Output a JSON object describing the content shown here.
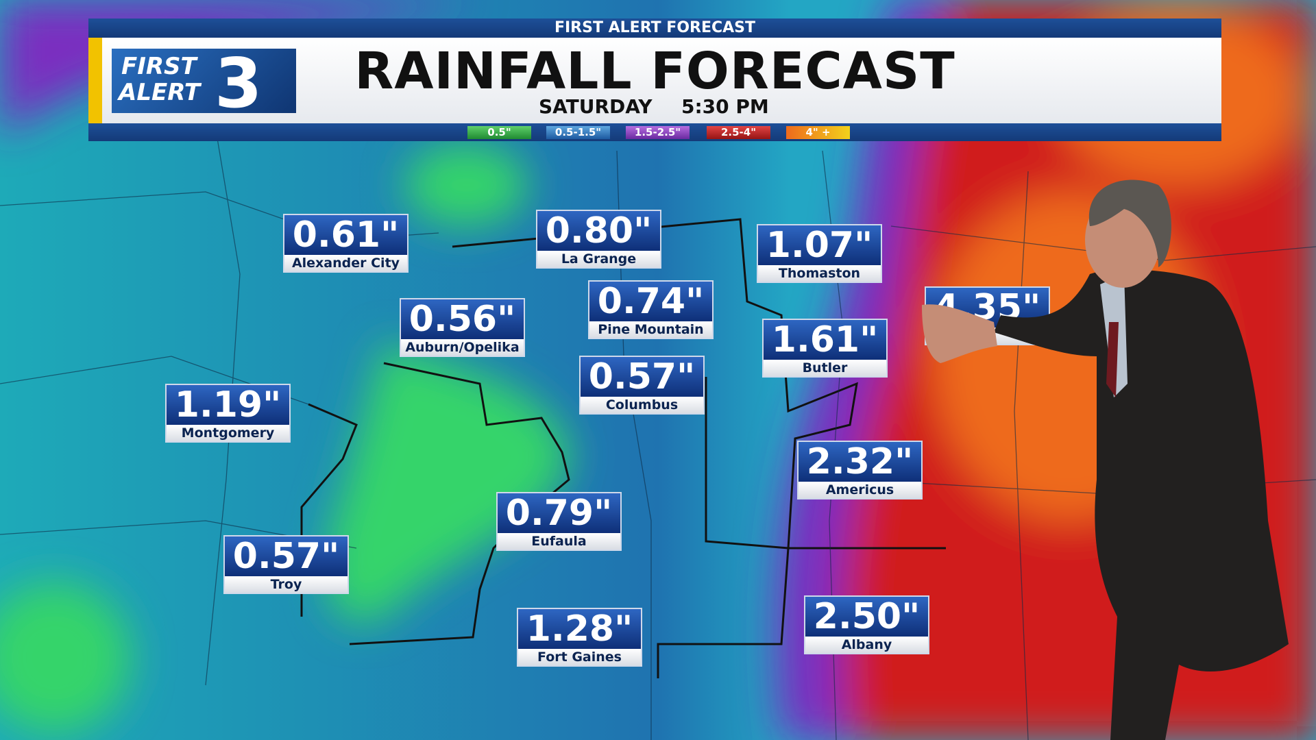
{
  "header": {
    "banner": "FIRST ALERT FORECAST",
    "logo": {
      "line1": "FIRST",
      "line2": "ALERT",
      "number": "3"
    },
    "title": "RAINFALL FORECAST",
    "day": "SATURDAY",
    "time": "5:30 PM"
  },
  "legend": [
    "0.5\"",
    "0.5-1.5\"",
    "1.5-2.5\"",
    "2.5-4\"",
    "4\" +"
  ],
  "locations": [
    {
      "amount": "0.61\"",
      "name": "Alexander City"
    },
    {
      "amount": "0.80\"",
      "name": "La Grange"
    },
    {
      "amount": "1.07\"",
      "name": "Thomaston"
    },
    {
      "amount": "0.74\"",
      "name": "Pine Mountain"
    },
    {
      "amount": "0.56\"",
      "name": "Auburn/Opelika"
    },
    {
      "amount": "1.61\"",
      "name": "Butler"
    },
    {
      "amount": "0.57\"",
      "name": "Columbus"
    },
    {
      "amount": "1.19\"",
      "name": "Montgomery"
    },
    {
      "amount": "2.32\"",
      "name": "Americus"
    },
    {
      "amount": "0.79\"",
      "name": "Eufaula"
    },
    {
      "amount": "0.57\"",
      "name": "Troy"
    },
    {
      "amount": "1.28\"",
      "name": "Fort Gaines"
    },
    {
      "amount": "2.50\"",
      "name": "Albany"
    },
    {
      "amount": "4.35\""
    }
  ]
}
